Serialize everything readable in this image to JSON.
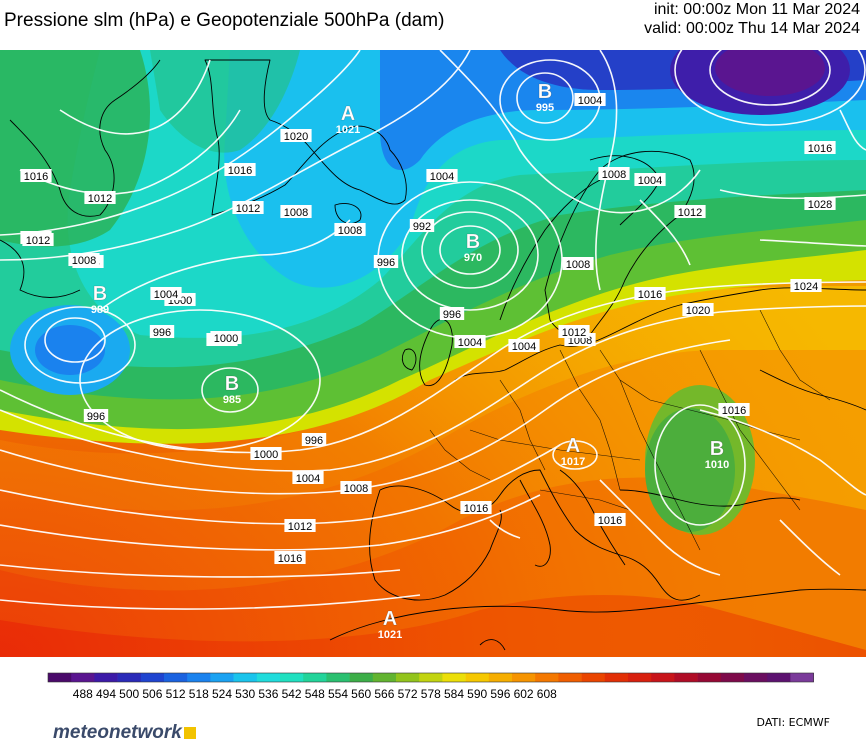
{
  "header": {
    "title": "Pressione slm (hPa) e Geopotenziale 500hPa (dam)",
    "init": "init: 00:00z Mon 11 Mar 2024",
    "valid": "valid: 00:00z Thu 14 Mar 2024"
  },
  "pressure_centers": [
    {
      "letter": "A",
      "value": "1021"
    },
    {
      "letter": "B",
      "value": "995"
    },
    {
      "letter": "B",
      "value": "970"
    },
    {
      "letter": "B",
      "value": "989"
    },
    {
      "letter": "B",
      "value": "985"
    },
    {
      "letter": "A",
      "value": "1017"
    },
    {
      "letter": "B",
      "value": "1010"
    },
    {
      "letter": "A",
      "value": "1021"
    }
  ],
  "isobar_labels": [
    "1016",
    "1016",
    "1020",
    "1012",
    "1008",
    "1004",
    "1004",
    "1000",
    "1012",
    "1012",
    "1008",
    "1004",
    "1000",
    "996",
    "992",
    "996",
    "1004",
    "1004",
    "1008",
    "1012",
    "1016",
    "1020",
    "1024",
    "1028",
    "1016",
    "1016",
    "1008",
    "1004",
    "1000",
    "996",
    "996",
    "996",
    "1000",
    "1004",
    "1008",
    "1012",
    "1016",
    "1016",
    "1016",
    "1008",
    "1012",
    "1008",
    "1012",
    "1008"
  ],
  "colorbar": {
    "ticks": [
      "488",
      "494",
      "500",
      "506",
      "512",
      "518",
      "524",
      "530",
      "536",
      "542",
      "548",
      "554",
      "560",
      "566",
      "572",
      "578",
      "584",
      "590",
      "596",
      "602",
      "608"
    ],
    "colors": [
      "#4a0a6a",
      "#5a1590",
      "#3c1aa8",
      "#2a2ab8",
      "#1f44d0",
      "#1a62e0",
      "#1a82ee",
      "#1aa2f2",
      "#1ac4ec",
      "#20dcdc",
      "#20e0c0",
      "#22d49a",
      "#2ac070",
      "#3cae48",
      "#62b430",
      "#92c41c",
      "#c2d410",
      "#ecdf08",
      "#f6c800",
      "#f6ae00",
      "#f69400",
      "#f47800",
      "#f05e00",
      "#ea4500",
      "#e22f06",
      "#d8200e",
      "#c8141a",
      "#b00c26",
      "#960834",
      "#7e0a4a",
      "#6a0e60",
      "#5c1270",
      "#7a3a9a"
    ]
  },
  "footer": {
    "brand": "meteonetwork",
    "credit": "DATI:  ECMWF"
  }
}
